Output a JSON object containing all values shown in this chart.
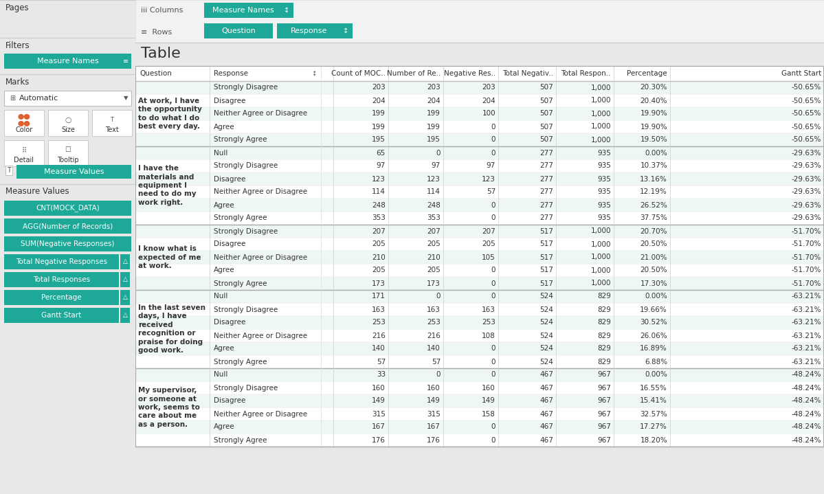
{
  "teal_color": "#1ea898",
  "teal_dark": "#178a7d",
  "panel_bg": "#e8e8e8",
  "main_bg": "#f5f5f5",
  "white": "#ffffff",
  "row_bg_alt": "#eef7f6",
  "sep_color": "#cccccc",
  "text_dark": "#333333",
  "text_mid": "#555555",
  "left_panel": {
    "measure_items": [
      "CNT(MOCK_DATA)",
      "AGG(Number of Records)",
      "SUM(Negative Responses)",
      "Total Negative Responses",
      "Total Responses",
      "Percentage",
      "Gantt Start"
    ],
    "measure_items_with_delta": [
      3,
      4,
      5,
      6
    ]
  },
  "table_headers": [
    "Question",
    "Response",
    "",
    "Count of MOC..",
    "Number of Re..",
    "Negative Res..",
    "Total Negativ..",
    "Total Respon..",
    "Percentage",
    "Gantt Start"
  ],
  "questions": [
    {
      "question": "At work, I have\nthe opportunity\nto do what I do\nbest every day.",
      "responses": [
        {
          "response": "Strongly Disagree",
          "count_mock": "203",
          "num_records": "203",
          "neg_resp": "203",
          "total_neg": "507",
          "total_resp": "1,000",
          "percentage": "20.30%",
          "gantt": "-50.65%"
        },
        {
          "response": "Disagree",
          "count_mock": "204",
          "num_records": "204",
          "neg_resp": "204",
          "total_neg": "507",
          "total_resp": "1,000",
          "percentage": "20.40%",
          "gantt": "-50.65%"
        },
        {
          "response": "Neither Agree or Disagree",
          "count_mock": "199",
          "num_records": "199",
          "neg_resp": "100",
          "total_neg": "507",
          "total_resp": "1,000",
          "percentage": "19.90%",
          "gantt": "-50.65%"
        },
        {
          "response": "Agree",
          "count_mock": "199",
          "num_records": "199",
          "neg_resp": "0",
          "total_neg": "507",
          "total_resp": "1,000",
          "percentage": "19.90%",
          "gantt": "-50.65%"
        },
        {
          "response": "Strongly Agree",
          "count_mock": "195",
          "num_records": "195",
          "neg_resp": "0",
          "total_neg": "507",
          "total_resp": "1,000",
          "percentage": "19.50%",
          "gantt": "-50.65%"
        }
      ]
    },
    {
      "question": "I have the\nmaterials and\nequipment I\nneed to do my\nwork right.",
      "responses": [
        {
          "response": "Null",
          "count_mock": "65",
          "num_records": "0",
          "neg_resp": "0",
          "total_neg": "277",
          "total_resp": "935",
          "percentage": "0.00%",
          "gantt": "-29.63%"
        },
        {
          "response": "Strongly Disagree",
          "count_mock": "97",
          "num_records": "97",
          "neg_resp": "97",
          "total_neg": "277",
          "total_resp": "935",
          "percentage": "10.37%",
          "gantt": "-29.63%"
        },
        {
          "response": "Disagree",
          "count_mock": "123",
          "num_records": "123",
          "neg_resp": "123",
          "total_neg": "277",
          "total_resp": "935",
          "percentage": "13.16%",
          "gantt": "-29.63%"
        },
        {
          "response": "Neither Agree or Disagree",
          "count_mock": "114",
          "num_records": "114",
          "neg_resp": "57",
          "total_neg": "277",
          "total_resp": "935",
          "percentage": "12.19%",
          "gantt": "-29.63%"
        },
        {
          "response": "Agree",
          "count_mock": "248",
          "num_records": "248",
          "neg_resp": "0",
          "total_neg": "277",
          "total_resp": "935",
          "percentage": "26.52%",
          "gantt": "-29.63%"
        },
        {
          "response": "Strongly Agree",
          "count_mock": "353",
          "num_records": "353",
          "neg_resp": "0",
          "total_neg": "277",
          "total_resp": "935",
          "percentage": "37.75%",
          "gantt": "-29.63%"
        }
      ]
    },
    {
      "question": "I know what is\nexpected of me\nat work.",
      "responses": [
        {
          "response": "Strongly Disagree",
          "count_mock": "207",
          "num_records": "207",
          "neg_resp": "207",
          "total_neg": "517",
          "total_resp": "1,000",
          "percentage": "20.70%",
          "gantt": "-51.70%"
        },
        {
          "response": "Disagree",
          "count_mock": "205",
          "num_records": "205",
          "neg_resp": "205",
          "total_neg": "517",
          "total_resp": "1,000",
          "percentage": "20.50%",
          "gantt": "-51.70%"
        },
        {
          "response": "Neither Agree or Disagree",
          "count_mock": "210",
          "num_records": "210",
          "neg_resp": "105",
          "total_neg": "517",
          "total_resp": "1,000",
          "percentage": "21.00%",
          "gantt": "-51.70%"
        },
        {
          "response": "Agree",
          "count_mock": "205",
          "num_records": "205",
          "neg_resp": "0",
          "total_neg": "517",
          "total_resp": "1,000",
          "percentage": "20.50%",
          "gantt": "-51.70%"
        },
        {
          "response": "Strongly Agree",
          "count_mock": "173",
          "num_records": "173",
          "neg_resp": "0",
          "total_neg": "517",
          "total_resp": "1,000",
          "percentage": "17.30%",
          "gantt": "-51.70%"
        }
      ]
    },
    {
      "question": "In the last seven\ndays, I have\nreceived\nrecognition or\npraise for doing\ngood work.",
      "responses": [
        {
          "response": "Null",
          "count_mock": "171",
          "num_records": "0",
          "neg_resp": "0",
          "total_neg": "524",
          "total_resp": "829",
          "percentage": "0.00%",
          "gantt": "-63.21%"
        },
        {
          "response": "Strongly Disagree",
          "count_mock": "163",
          "num_records": "163",
          "neg_resp": "163",
          "total_neg": "524",
          "total_resp": "829",
          "percentage": "19.66%",
          "gantt": "-63.21%"
        },
        {
          "response": "Disagree",
          "count_mock": "253",
          "num_records": "253",
          "neg_resp": "253",
          "total_neg": "524",
          "total_resp": "829",
          "percentage": "30.52%",
          "gantt": "-63.21%"
        },
        {
          "response": "Neither Agree or Disagree",
          "count_mock": "216",
          "num_records": "216",
          "neg_resp": "108",
          "total_neg": "524",
          "total_resp": "829",
          "percentage": "26.06%",
          "gantt": "-63.21%"
        },
        {
          "response": "Agree",
          "count_mock": "140",
          "num_records": "140",
          "neg_resp": "0",
          "total_neg": "524",
          "total_resp": "829",
          "percentage": "16.89%",
          "gantt": "-63.21%"
        },
        {
          "response": "Strongly Agree",
          "count_mock": "57",
          "num_records": "57",
          "neg_resp": "0",
          "total_neg": "524",
          "total_resp": "829",
          "percentage": "6.88%",
          "gantt": "-63.21%"
        }
      ]
    },
    {
      "question": "My supervisor,\nor someone at\nwork, seems to\ncare about me\nas a person.",
      "responses": [
        {
          "response": "Null",
          "count_mock": "33",
          "num_records": "0",
          "neg_resp": "0",
          "total_neg": "467",
          "total_resp": "967",
          "percentage": "0.00%",
          "gantt": "-48.24%"
        },
        {
          "response": "Strongly Disagree",
          "count_mock": "160",
          "num_records": "160",
          "neg_resp": "160",
          "total_neg": "467",
          "total_resp": "967",
          "percentage": "16.55%",
          "gantt": "-48.24%"
        },
        {
          "response": "Disagree",
          "count_mock": "149",
          "num_records": "149",
          "neg_resp": "149",
          "total_neg": "467",
          "total_resp": "967",
          "percentage": "15.41%",
          "gantt": "-48.24%"
        },
        {
          "response": "Neither Agree or Disagree",
          "count_mock": "315",
          "num_records": "315",
          "neg_resp": "158",
          "total_neg": "467",
          "total_resp": "967",
          "percentage": "32.57%",
          "gantt": "-48.24%"
        },
        {
          "response": "Agree",
          "count_mock": "167",
          "num_records": "167",
          "neg_resp": "0",
          "total_neg": "467",
          "total_resp": "967",
          "percentage": "17.27%",
          "gantt": "-48.24%"
        },
        {
          "response": "Strongly Agree",
          "count_mock": "176",
          "num_records": "176",
          "neg_resp": "0",
          "total_neg": "467",
          "total_resp": "967",
          "percentage": "18.20%",
          "gantt": "-48.24%"
        }
      ]
    }
  ]
}
